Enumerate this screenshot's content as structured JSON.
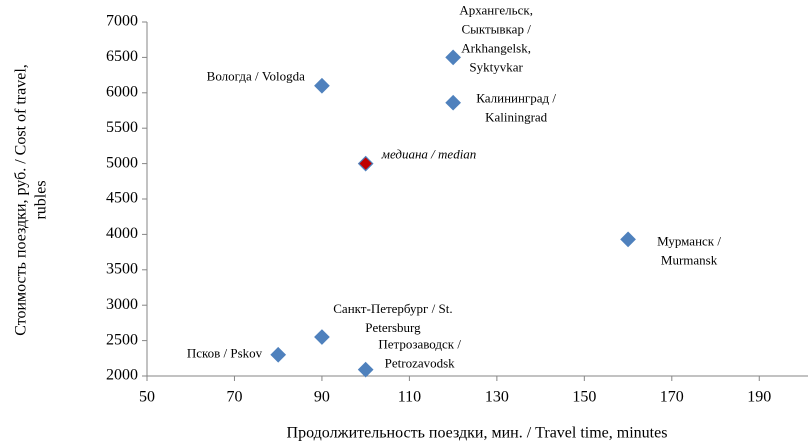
{
  "chart_data": {
    "type": "scatter",
    "x_label": "Продолжительность поездки, мин. / Travel time, minutes",
    "y_label": [
      "Стоимость поездки, руб. / Cost of travel,",
      "rubles"
    ],
    "xlim": [
      50,
      200
    ],
    "xticks": [
      50,
      70,
      90,
      110,
      130,
      150,
      170,
      190
    ],
    "ylim": [
      2000,
      7000
    ],
    "yticks": [
      2000,
      2500,
      3000,
      3500,
      4000,
      4500,
      5000,
      5500,
      6000,
      6500,
      7000
    ],
    "series": [
      {
        "color": "#4f81bd",
        "x": [
          120,
          90,
          120,
          160,
          90,
          80,
          100
        ],
        "values": [
          6500,
          6100,
          5860,
          3930,
          2550,
          2300,
          2090
        ],
        "labels": [
          [
            "Архангельск,",
            "Сыктывкар /",
            "Arkhangelsk,",
            "Syktyvkar"
          ],
          [
            "Вологда / Vologda"
          ],
          [
            "Калининград /",
            "Kaliningrad"
          ],
          [
            "Мурманск /",
            "Murmansk"
          ],
          [
            "Санкт-Петербург / St.",
            "Petersburg"
          ],
          [
            "Псков / Pskov"
          ],
          [
            "Петрозаводск /",
            "Petrozavodsk"
          ]
        ]
      },
      {
        "color": "#c00000",
        "x": [
          100
        ],
        "values": [
          5000
        ],
        "labels": [
          [
            "медиана / median"
          ]
        ]
      }
    ]
  }
}
